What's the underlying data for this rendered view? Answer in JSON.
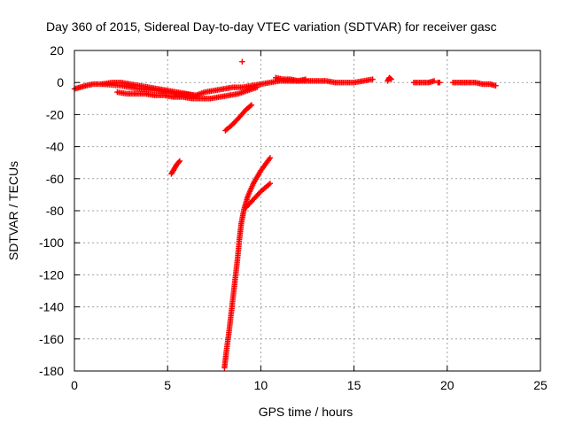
{
  "chart_data": {
    "type": "scatter",
    "title": "Day 360 of 2015, Sidereal Day-to-day VTEC variation (SDTVAR) for receiver gasc",
    "xlabel": "GPS time / hours",
    "ylabel": "SDTVAR / TECUs",
    "xlim": [
      0,
      25
    ],
    "ylim": [
      -180,
      20
    ],
    "xticks": [
      "0",
      "5",
      "10",
      "15",
      "20",
      "25"
    ],
    "yticks": [
      "20",
      "0",
      "-20",
      "-40",
      "-60",
      "-80",
      "-100",
      "-120",
      "-140",
      "-160",
      "-180"
    ],
    "grid": true,
    "legend": "none",
    "marker": "plus",
    "color": "#ff0000",
    "series": [
      {
        "segments": [
          [
            [
              0.0,
              -4
            ],
            [
              0.3,
              -3
            ],
            [
              0.6,
              -2
            ],
            [
              1.0,
              -1
            ],
            [
              1.5,
              -1
            ],
            [
              2.0,
              0
            ],
            [
              2.5,
              0
            ],
            [
              3.0,
              -1
            ],
            [
              3.5,
              -2
            ],
            [
              4.0,
              -3
            ],
            [
              4.5,
              -4
            ],
            [
              5.0,
              -5
            ],
            [
              5.5,
              -6
            ],
            [
              6.0,
              -7
            ],
            [
              6.5,
              -8
            ],
            [
              7.0,
              -6
            ],
            [
              7.5,
              -5
            ],
            [
              8.0,
              -4
            ],
            [
              8.5,
              -3
            ],
            [
              9.0,
              -3
            ],
            [
              9.5,
              -2
            ],
            [
              10.0,
              -1
            ],
            [
              10.5,
              0
            ],
            [
              11.0,
              1
            ],
            [
              11.5,
              1
            ],
            [
              12.0,
              1
            ],
            [
              12.5,
              1
            ],
            [
              13.0,
              1
            ],
            [
              13.5,
              1
            ],
            [
              14.0,
              0
            ],
            [
              14.5,
              0
            ],
            [
              15.0,
              0
            ],
            [
              15.5,
              1
            ],
            [
              16.0,
              2
            ]
          ],
          [
            [
              2.3,
              -6
            ],
            [
              2.8,
              -7
            ],
            [
              3.3,
              -7
            ],
            [
              3.8,
              -7
            ],
            [
              4.3,
              -8
            ],
            [
              4.8,
              -8
            ],
            [
              5.3,
              -9
            ],
            [
              5.8,
              -9
            ],
            [
              6.3,
              -10
            ],
            [
              6.8,
              -10
            ],
            [
              7.3,
              -10
            ],
            [
              7.8,
              -9
            ],
            [
              8.3,
              -8
            ],
            [
              8.8,
              -7
            ],
            [
              9.3,
              -5
            ],
            [
              9.8,
              -3
            ]
          ],
          [
            [
              1.5,
              -1
            ],
            [
              2.5,
              -2
            ],
            [
              3.5,
              -4
            ],
            [
              4.5,
              -5
            ],
            [
              5.5,
              -7
            ],
            [
              6.5,
              -8
            ]
          ],
          [
            [
              10.8,
              3
            ],
            [
              11.2,
              2
            ],
            [
              11.6,
              2
            ],
            [
              12.0,
              1
            ],
            [
              12.4,
              2
            ]
          ],
          [
            [
              16.8,
              1
            ],
            [
              16.9,
              3
            ],
            [
              17.0,
              2
            ]
          ],
          [
            [
              18.2,
              0
            ],
            [
              18.6,
              0
            ],
            [
              19.0,
              0
            ],
            [
              19.3,
              1
            ]
          ],
          [
            [
              19.5,
              0
            ],
            [
              19.6,
              0
            ]
          ],
          [
            [
              20.3,
              0
            ],
            [
              20.7,
              0
            ],
            [
              21.1,
              0
            ],
            [
              21.5,
              0
            ],
            [
              21.9,
              -1
            ],
            [
              22.3,
              -1
            ],
            [
              22.6,
              -2
            ]
          ],
          [
            [
              9.0,
              13
            ]
          ],
          [
            [
              8.1,
              -30
            ],
            [
              8.5,
              -26
            ],
            [
              8.9,
              -21
            ],
            [
              9.2,
              -17
            ],
            [
              9.5,
              -14
            ]
          ],
          [
            [
              5.2,
              -57
            ],
            [
              5.35,
              -54
            ],
            [
              5.5,
              -51
            ],
            [
              5.65,
              -49
            ]
          ],
          [
            [
              10.5,
              -47
            ],
            [
              10.0,
              -55
            ],
            [
              9.6,
              -63
            ],
            [
              9.3,
              -71
            ],
            [
              9.1,
              -79
            ],
            [
              8.95,
              -88
            ],
            [
              8.85,
              -98
            ],
            [
              8.75,
              -110
            ],
            [
              8.6,
              -125
            ],
            [
              8.45,
              -140
            ],
            [
              8.3,
              -155
            ],
            [
              8.15,
              -168
            ],
            [
              8.05,
              -178
            ]
          ],
          [
            [
              9.2,
              -78
            ],
            [
              9.6,
              -73
            ],
            [
              10.0,
              -68
            ],
            [
              10.5,
              -63
            ]
          ]
        ]
      }
    ]
  }
}
